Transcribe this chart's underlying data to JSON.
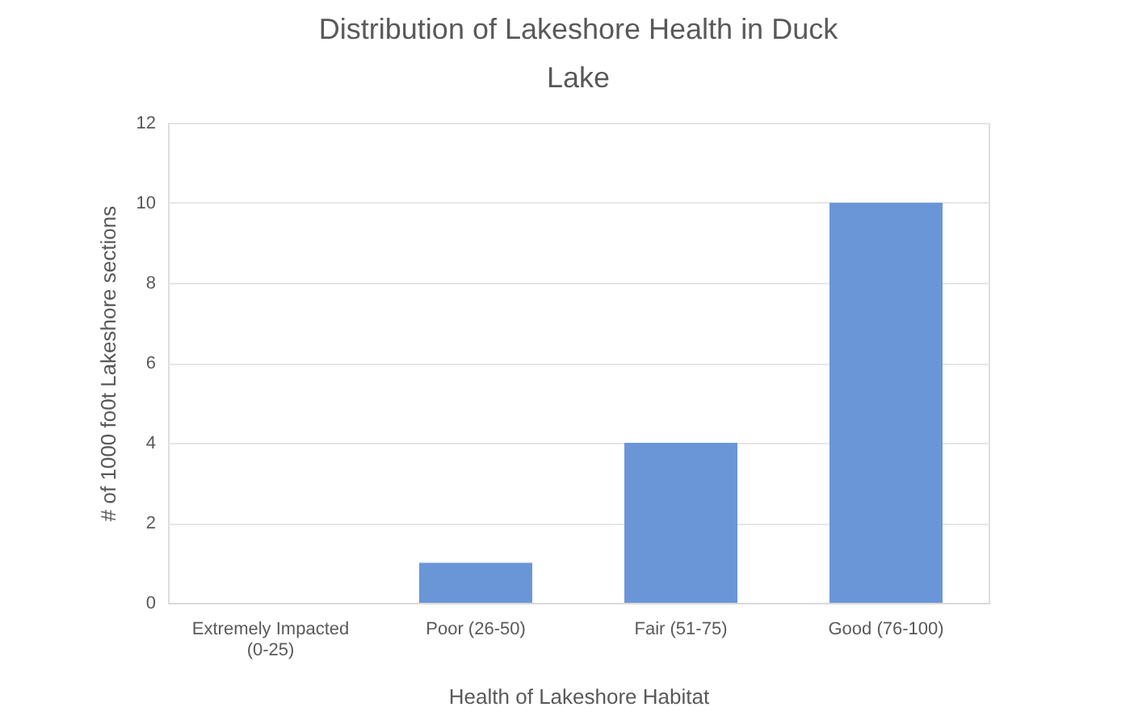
{
  "chart_data": {
    "type": "bar",
    "title": "Distribution of Lakeshore Health in Duck Lake",
    "xlabel": "Health of Lakeshore Habitat",
    "ylabel": "# of 1000 fo0t Lakeshore sections",
    "categories": [
      "Extremely Impacted (0-25)",
      "Poor (26-50)",
      "Fair (51-75)",
      "Good (76-100)"
    ],
    "values": [
      0,
      1,
      4,
      10
    ],
    "color": "#6a96d8",
    "ylim": [
      0,
      12
    ],
    "yticks": [
      0,
      2,
      4,
      6,
      8,
      10,
      12
    ],
    "grid": "y"
  }
}
